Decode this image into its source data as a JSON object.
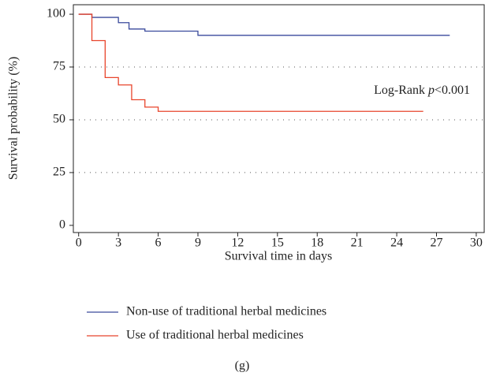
{
  "chart_data": {
    "type": "step",
    "y_label": "Survival probability (%)",
    "x_label": "Survival time in days",
    "caption": "(g)",
    "annotation": {
      "before": "Log-Rank ",
      "italic": "p",
      "after": "<0.001"
    },
    "xlim": [
      -0.4,
      30.6
    ],
    "ylim": [
      -3.4,
      104.5
    ],
    "xticks": [
      0,
      3,
      6,
      9,
      12,
      15,
      18,
      21,
      24,
      27,
      30
    ],
    "yticks": [
      0,
      25,
      50,
      75,
      100
    ],
    "grid_values": [
      25,
      50,
      75
    ],
    "series": [
      {
        "name": "Non-use of traditional herbal medicines",
        "color": "#3a4a9c",
        "x": [
          0,
          1,
          3,
          3.8,
          5,
          9,
          28
        ],
        "values": [
          100,
          98.5,
          96,
          93,
          92,
          90,
          90
        ]
      },
      {
        "name": "Use of traditional herbal medicines",
        "color": "#e8452c",
        "x": [
          0,
          1,
          2,
          3,
          4,
          5,
          6,
          26
        ],
        "values": [
          100,
          87.5,
          70,
          66.5,
          59.5,
          56,
          54,
          54
        ]
      }
    ]
  }
}
